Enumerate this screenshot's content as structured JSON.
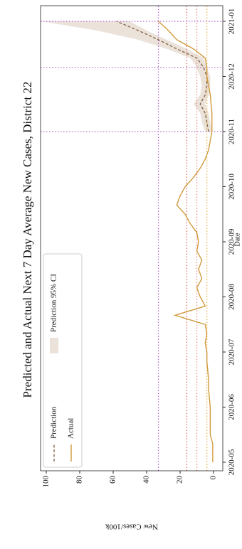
{
  "chart_data": {
    "type": "line",
    "title": "Predicted and Actual Next 7 Day Average New Cases, District 22",
    "x_label": "Date",
    "y_label": "New Cases/100k",
    "categories": [
      "2020-05",
      null,
      null,
      null,
      null,
      null,
      "2020-06",
      null,
      null,
      null,
      null,
      null,
      "2020-07",
      null,
      null,
      null,
      null,
      null,
      "2020-08",
      null,
      null,
      null,
      null,
      null,
      "2020-09",
      null,
      null,
      null,
      null,
      null,
      "2020-10",
      null,
      null,
      null,
      null,
      null,
      "2020-11",
      null,
      null,
      null,
      null,
      null,
      "2020-12",
      null,
      null,
      null,
      null,
      null,
      "2021-01"
    ],
    "series": [
      {
        "name": "Prediction",
        "color": "#8a6a4e",
        "dash": true,
        "values": [
          null,
          null,
          null,
          null,
          null,
          null,
          null,
          null,
          null,
          null,
          null,
          null,
          null,
          null,
          null,
          null,
          null,
          null,
          null,
          null,
          null,
          null,
          null,
          null,
          null,
          null,
          null,
          null,
          null,
          null,
          null,
          null,
          null,
          null,
          null,
          null,
          3,
          4,
          5,
          8,
          5,
          4,
          4,
          6,
          10,
          22,
          33,
          45,
          58
        ]
      },
      {
        "name": "Actual",
        "color": "#d09a3c",
        "values": [
          0.5,
          0.5,
          0.5,
          2,
          2,
          2,
          2,
          2.5,
          3,
          3,
          3.5,
          4,
          4,
          5,
          4,
          5,
          23,
          5,
          8,
          10,
          7,
          9,
          7,
          10,
          9,
          10,
          14,
          17,
          22,
          20,
          17,
          12,
          8,
          5,
          3,
          2,
          1,
          1,
          1,
          1.5,
          2,
          3,
          4,
          4,
          5,
          12,
          22,
          27,
          33
        ]
      }
    ],
    "band": {
      "name": "Prediction 95% CI",
      "color": "#ebe3da",
      "lower": [
        null,
        null,
        null,
        null,
        null,
        null,
        null,
        null,
        null,
        null,
        null,
        null,
        null,
        null,
        null,
        null,
        null,
        null,
        null,
        null,
        null,
        null,
        null,
        null,
        null,
        null,
        null,
        null,
        null,
        null,
        null,
        null,
        null,
        null,
        null,
        null,
        1,
        2,
        3,
        5,
        3,
        2,
        2,
        4,
        6,
        16,
        28,
        40,
        50
      ],
      "upper": [
        null,
        null,
        null,
        null,
        null,
        null,
        null,
        null,
        null,
        null,
        null,
        null,
        null,
        null,
        null,
        null,
        null,
        null,
        null,
        null,
        null,
        null,
        null,
        null,
        null,
        null,
        null,
        null,
        null,
        null,
        null,
        null,
        null,
        null,
        null,
        null,
        5,
        7,
        8,
        12,
        8,
        7,
        8,
        10,
        14,
        28,
        45,
        70,
        103
      ]
    },
    "ylim": [
      -5.5,
      103.4
    ],
    "yticks": [
      0,
      20,
      40,
      60,
      80,
      100
    ],
    "y_reference_lines": [
      {
        "value": 33,
        "color": "#b35fd0"
      },
      {
        "value": 16,
        "color": "#e0605a"
      },
      {
        "value": 10,
        "color": "#e8867a"
      },
      {
        "value": 4,
        "color": "#e8b040"
      }
    ],
    "x_reference_lines": [
      {
        "value": 36,
        "color": "#b070c8"
      },
      {
        "value": 43,
        "color": "#b070c8"
      },
      {
        "value": 48,
        "color": "#b35fd0"
      }
    ],
    "legend": "upper left"
  }
}
